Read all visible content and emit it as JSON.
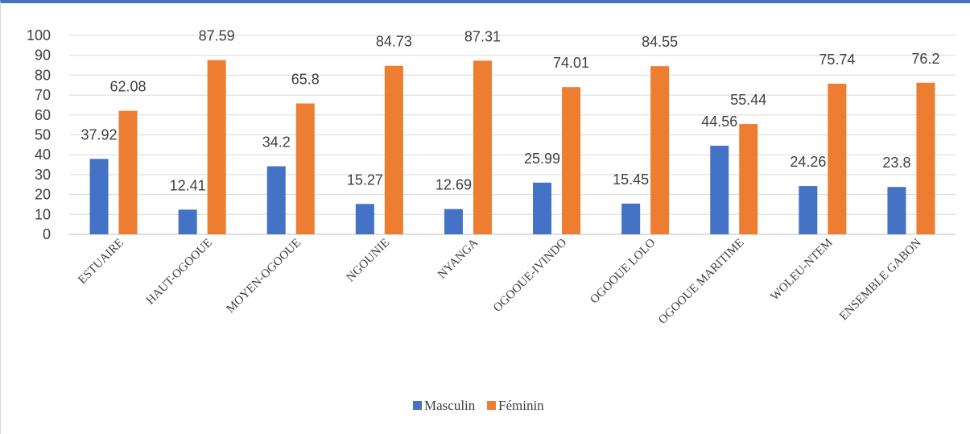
{
  "chart_data": {
    "type": "bar",
    "title": "",
    "xlabel": "",
    "ylabel": "",
    "ylim": [
      0,
      100
    ],
    "yticks": [
      0,
      10,
      20,
      30,
      40,
      50,
      60,
      70,
      80,
      90,
      100
    ],
    "grid": true,
    "legend_position": "bottom",
    "categories": [
      "ESTUAIRE",
      "HAUT-OGOOUE",
      "MOYEN-OGOOUE",
      "NGOUNIE",
      "NYANGA",
      "OGOOUE-IVINDO",
      "OGOOUE LOLO",
      "OGOOUE MARITIME",
      "WOLEU-NTEM",
      "ENSEMBLE GABON"
    ],
    "series": [
      {
        "name": "Masculin",
        "color": "#4472c4",
        "values": [
          37.92,
          12.41,
          34.2,
          15.27,
          12.69,
          25.99,
          15.45,
          44.56,
          24.26,
          23.8
        ]
      },
      {
        "name": "Féminin",
        "color": "#ed7d31",
        "values": [
          62.08,
          87.59,
          65.8,
          84.73,
          87.31,
          74.01,
          84.55,
          55.44,
          75.74,
          76.2
        ]
      }
    ]
  }
}
